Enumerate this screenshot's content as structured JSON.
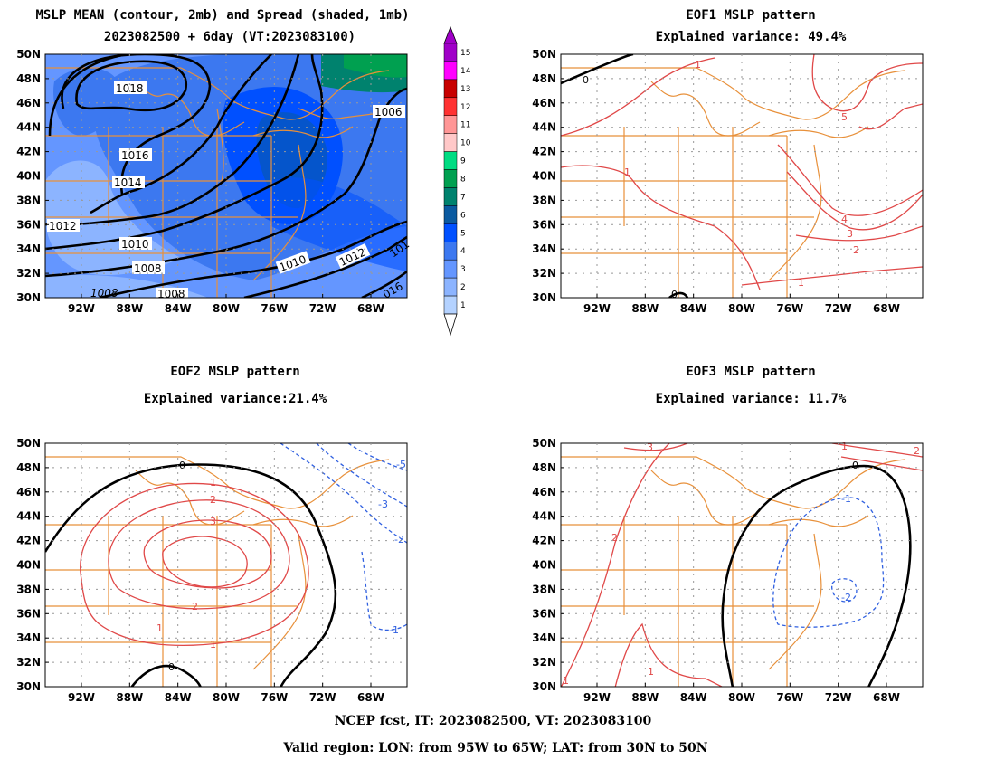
{
  "panels": {
    "mean": {
      "title_line1": "MSLP MEAN (contour, 2mb) and Spread (shaded, 1mb)",
      "title_line2": "2023082500 + 6day (VT:2023083100)",
      "contour_labels": [
        "1018",
        "1016",
        "1014",
        "1012",
        "1010",
        "1008",
        "1008",
        "1008",
        "1006",
        "1010",
        "1012",
        "101",
        "016"
      ]
    },
    "eof1": {
      "title_line1": "EOF1 MSLP pattern",
      "title_line2": "Explained variance: 49.4%",
      "labels": [
        "0",
        "1",
        "5",
        "1",
        "4",
        "3",
        "2",
        "1",
        "0"
      ]
    },
    "eof2": {
      "title_line1": "EOF2 MSLP pattern",
      "title_line2": "Explained variance:21.4%",
      "labels": [
        "0",
        "1",
        "2",
        "3",
        "2",
        "1",
        "1",
        "0",
        "-3",
        "-2",
        "-1",
        "-5"
      ]
    },
    "eof3": {
      "title_line1": "EOF3 MSLP pattern",
      "title_line2": "Explained variance: 11.7%",
      "labels": [
        "0",
        "1",
        "2",
        "3",
        "2",
        "1",
        "-1",
        "-2",
        "1"
      ]
    }
  },
  "axes": {
    "lat_labels": [
      "50N",
      "48N",
      "46N",
      "44N",
      "42N",
      "40N",
      "38N",
      "36N",
      "34N",
      "32N",
      "30N"
    ],
    "lon_labels": [
      "92W",
      "88W",
      "84W",
      "80W",
      "76W",
      "72W",
      "68W"
    ]
  },
  "colorbar": {
    "labels": [
      "15",
      "14",
      "13",
      "12",
      "11",
      "10",
      "9",
      "8",
      "7",
      "6",
      "5",
      "4",
      "3",
      "2",
      "1"
    ],
    "colors": [
      "#a000c8",
      "#ff00ff",
      "#c80000",
      "#ff3232",
      "#ff9696",
      "#ffc8c8",
      "#00dc82",
      "#00a050",
      "#00826e",
      "#0a5aa0",
      "#0050ff",
      "#3c78f0",
      "#6496ff",
      "#8cb4ff",
      "#b4d2ff"
    ]
  },
  "footer": {
    "line1": "NCEP fcst, IT: 2023082500, VT: 2023083100",
    "line2": "Valid region: LON: from 95W to 65W; LAT: from 30N to 50N"
  }
}
